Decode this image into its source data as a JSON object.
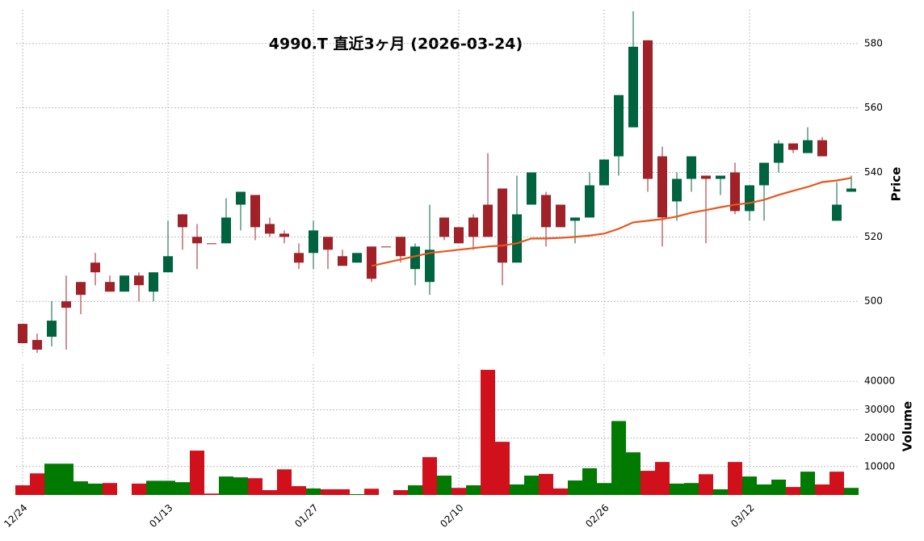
{
  "chart_data": {
    "type": "candlestick",
    "title": "4990.T 直近3ヶ月 (2026-03-24)",
    "y_label": "Price",
    "y2_label": "Volume",
    "categories": [
      "12/24",
      null,
      null,
      null,
      null,
      null,
      null,
      null,
      null,
      null,
      "01/13",
      null,
      null,
      null,
      null,
      null,
      null,
      null,
      null,
      null,
      "01/27",
      null,
      null,
      null,
      null,
      null,
      null,
      null,
      null,
      null,
      "02/10",
      null,
      null,
      null,
      null,
      null,
      null,
      null,
      null,
      null,
      "02/26",
      null,
      null,
      null,
      null,
      null,
      null,
      null,
      null,
      null,
      "03/12",
      null,
      null,
      null,
      null,
      null,
      null,
      null
    ],
    "open": [
      493,
      488,
      489,
      500,
      506,
      512,
      506,
      503,
      508,
      503,
      509,
      527,
      520,
      518,
      518,
      530,
      533,
      524,
      521,
      515,
      515,
      520,
      514,
      512,
      517,
      517,
      520,
      510,
      506,
      526,
      523,
      526,
      530,
      535,
      512,
      530,
      533,
      530,
      525,
      526,
      536,
      545,
      554,
      581,
      545,
      531,
      538,
      539,
      538,
      540,
      528,
      536,
      543,
      549,
      546,
      550,
      525,
      534
    ],
    "high": [
      493,
      490,
      500,
      508,
      506,
      515,
      508,
      508,
      509,
      509,
      525,
      527,
      524,
      518,
      532,
      534,
      533,
      526,
      522,
      518,
      525,
      520,
      516,
      515,
      517,
      517,
      520,
      518,
      530,
      526,
      523,
      527,
      546,
      535,
      539,
      540,
      534,
      530,
      526,
      540,
      544,
      564,
      590,
      581,
      548,
      540,
      545,
      539,
      539,
      543,
      536,
      543,
      550,
      549,
      554,
      551,
      537,
      539
    ],
    "low": [
      487,
      484,
      486,
      485,
      496,
      505,
      503,
      503,
      500,
      500,
      510,
      516,
      510,
      518,
      518,
      522,
      519,
      520,
      518,
      510,
      510,
      510,
      511,
      512,
      506,
      517,
      512,
      505,
      502,
      519,
      518,
      516,
      520,
      505,
      512,
      530,
      517,
      523,
      518,
      526,
      536,
      539,
      554,
      534,
      517,
      525,
      534,
      518,
      533,
      527,
      525,
      525,
      540,
      546,
      546,
      545,
      525,
      534
    ],
    "close": [
      487,
      485,
      494,
      498,
      502,
      509,
      503,
      508,
      505,
      509,
      514,
      523,
      518,
      518,
      526,
      534,
      523,
      521,
      520,
      512,
      522,
      516,
      511,
      515,
      507,
      517,
      514,
      517,
      516,
      520,
      518,
      520,
      520,
      512,
      527,
      540,
      523,
      523,
      526,
      536,
      544,
      564,
      579,
      538,
      526,
      538,
      545,
      538,
      539,
      528,
      536,
      543,
      549,
      547,
      550,
      545,
      530,
      535
    ],
    "volume": [
      3400,
      7600,
      11000,
      11000,
      4800,
      4000,
      4200,
      null,
      4000,
      5000,
      5000,
      4500,
      15600,
      500,
      6500,
      6200,
      5900,
      1700,
      9000,
      3100,
      2300,
      2000,
      2000,
      300,
      2200,
      null,
      1700,
      3400,
      13300,
      6800,
      2500,
      3400,
      44000,
      18700,
      3700,
      6800,
      7400,
      2300,
      5100,
      9400,
      4200,
      26000,
      15000,
      8500,
      11600,
      4000,
      4200,
      7300,
      2000,
      11600,
      6500,
      3700,
      5400,
      2800,
      8200,
      3700,
      8200,
      2500
    ],
    "ma": {
      "color": "#e8561c",
      "values": [
        null,
        null,
        null,
        null,
        null,
        null,
        null,
        null,
        null,
        null,
        null,
        null,
        null,
        null,
        null,
        null,
        null,
        null,
        null,
        null,
        null,
        null,
        null,
        null,
        511,
        512,
        513,
        514,
        515,
        515.5,
        516,
        516.5,
        517,
        517.3,
        518,
        519.5,
        519.5,
        519.7,
        520,
        520.4,
        521,
        522.5,
        524.5,
        525,
        525.5,
        526.3,
        527.5,
        528.3,
        529.2,
        530,
        530.5,
        531.5,
        533,
        534.3,
        535.5,
        537,
        537.5,
        538.3
      ]
    },
    "colors": {
      "up": "#006340",
      "down": "#a02128",
      "volume_up": "#007a00",
      "volume_down": "#d0101b"
    },
    "ylim": [
      483,
      590
    ],
    "yticks": [
      500,
      520,
      540,
      560,
      580
    ],
    "y2lim": [
      0,
      46000
    ],
    "y2ticks": [
      10000,
      20000,
      30000,
      40000
    ],
    "grid": true
  }
}
